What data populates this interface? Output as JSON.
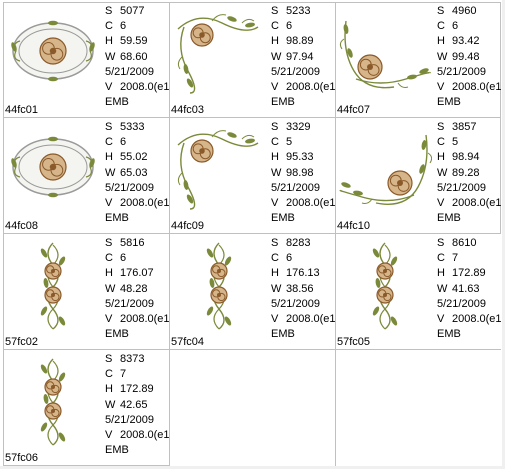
{
  "designs": [
    {
      "name": "44fc01",
      "S": "5077",
      "C": "6",
      "H": "59.59",
      "W": "68.60",
      "date": "5/21/2009",
      "V": "2008.0(e1",
      "format": "EMB",
      "icon": "oval-rose-frame"
    },
    {
      "name": "44fc03",
      "S": "5233",
      "C": "6",
      "H": "98.89",
      "W": "97.94",
      "date": "5/21/2009",
      "V": "2008.0(e1",
      "format": "EMB",
      "icon": "rose-corner-top-left"
    },
    {
      "name": "44fc07",
      "S": "4960",
      "C": "6",
      "H": "93.42",
      "W": "99.48",
      "date": "5/21/2009",
      "V": "2008.0(e1",
      "format": "EMB",
      "icon": "rose-corner-bottom-left"
    },
    {
      "name": "44fc08",
      "S": "5333",
      "C": "6",
      "H": "55.02",
      "W": "65.03",
      "date": "5/21/2009",
      "V": "2008.0(e1",
      "format": "EMB",
      "icon": "oval-rose-frame"
    },
    {
      "name": "44fc09",
      "S": "3329",
      "C": "5",
      "H": "95.33",
      "W": "98.98",
      "date": "5/21/2009",
      "V": "2008.0(e1",
      "format": "EMB",
      "icon": "rose-corner-top-left"
    },
    {
      "name": "44fc10",
      "S": "3857",
      "C": "5",
      "H": "98.94",
      "W": "89.28",
      "date": "5/21/2009",
      "V": "2008.0(e1",
      "format": "EMB",
      "icon": "rose-corner-bottom-right"
    },
    {
      "name": "57fc02",
      "S": "5816",
      "C": "6",
      "H": "176.07",
      "W": "48.28",
      "date": "5/21/2009",
      "V": "2008.0(e1",
      "format": "EMB",
      "icon": "vertical-rose-border"
    },
    {
      "name": "57fc04",
      "S": "8283",
      "C": "6",
      "H": "176.13",
      "W": "38.56",
      "date": "5/21/2009",
      "V": "2008.0(e1",
      "format": "EMB",
      "icon": "vertical-rose-border"
    },
    {
      "name": "57fc05",
      "S": "8610",
      "C": "7",
      "H": "172.89",
      "W": "41.63",
      "date": "5/21/2009",
      "V": "2008.0(e1",
      "format": "EMB",
      "icon": "vertical-rose-border"
    },
    {
      "name": "57fc06",
      "S": "8373",
      "C": "7",
      "H": "172.89",
      "W": "42.65",
      "date": "5/21/2009",
      "V": "2008.0(e1",
      "format": "EMB",
      "icon": "vertical-rose-border"
    }
  ],
  "labels": {
    "S": "S",
    "C": "C",
    "H": "H",
    "W": "W",
    "V": "V"
  },
  "colors": {
    "grid": "#c0c0c0",
    "leaf": "#7a8a3a",
    "rose": "#8a5a2a",
    "rose_light": "#d6b58a",
    "frame": "#9a9a9a"
  }
}
